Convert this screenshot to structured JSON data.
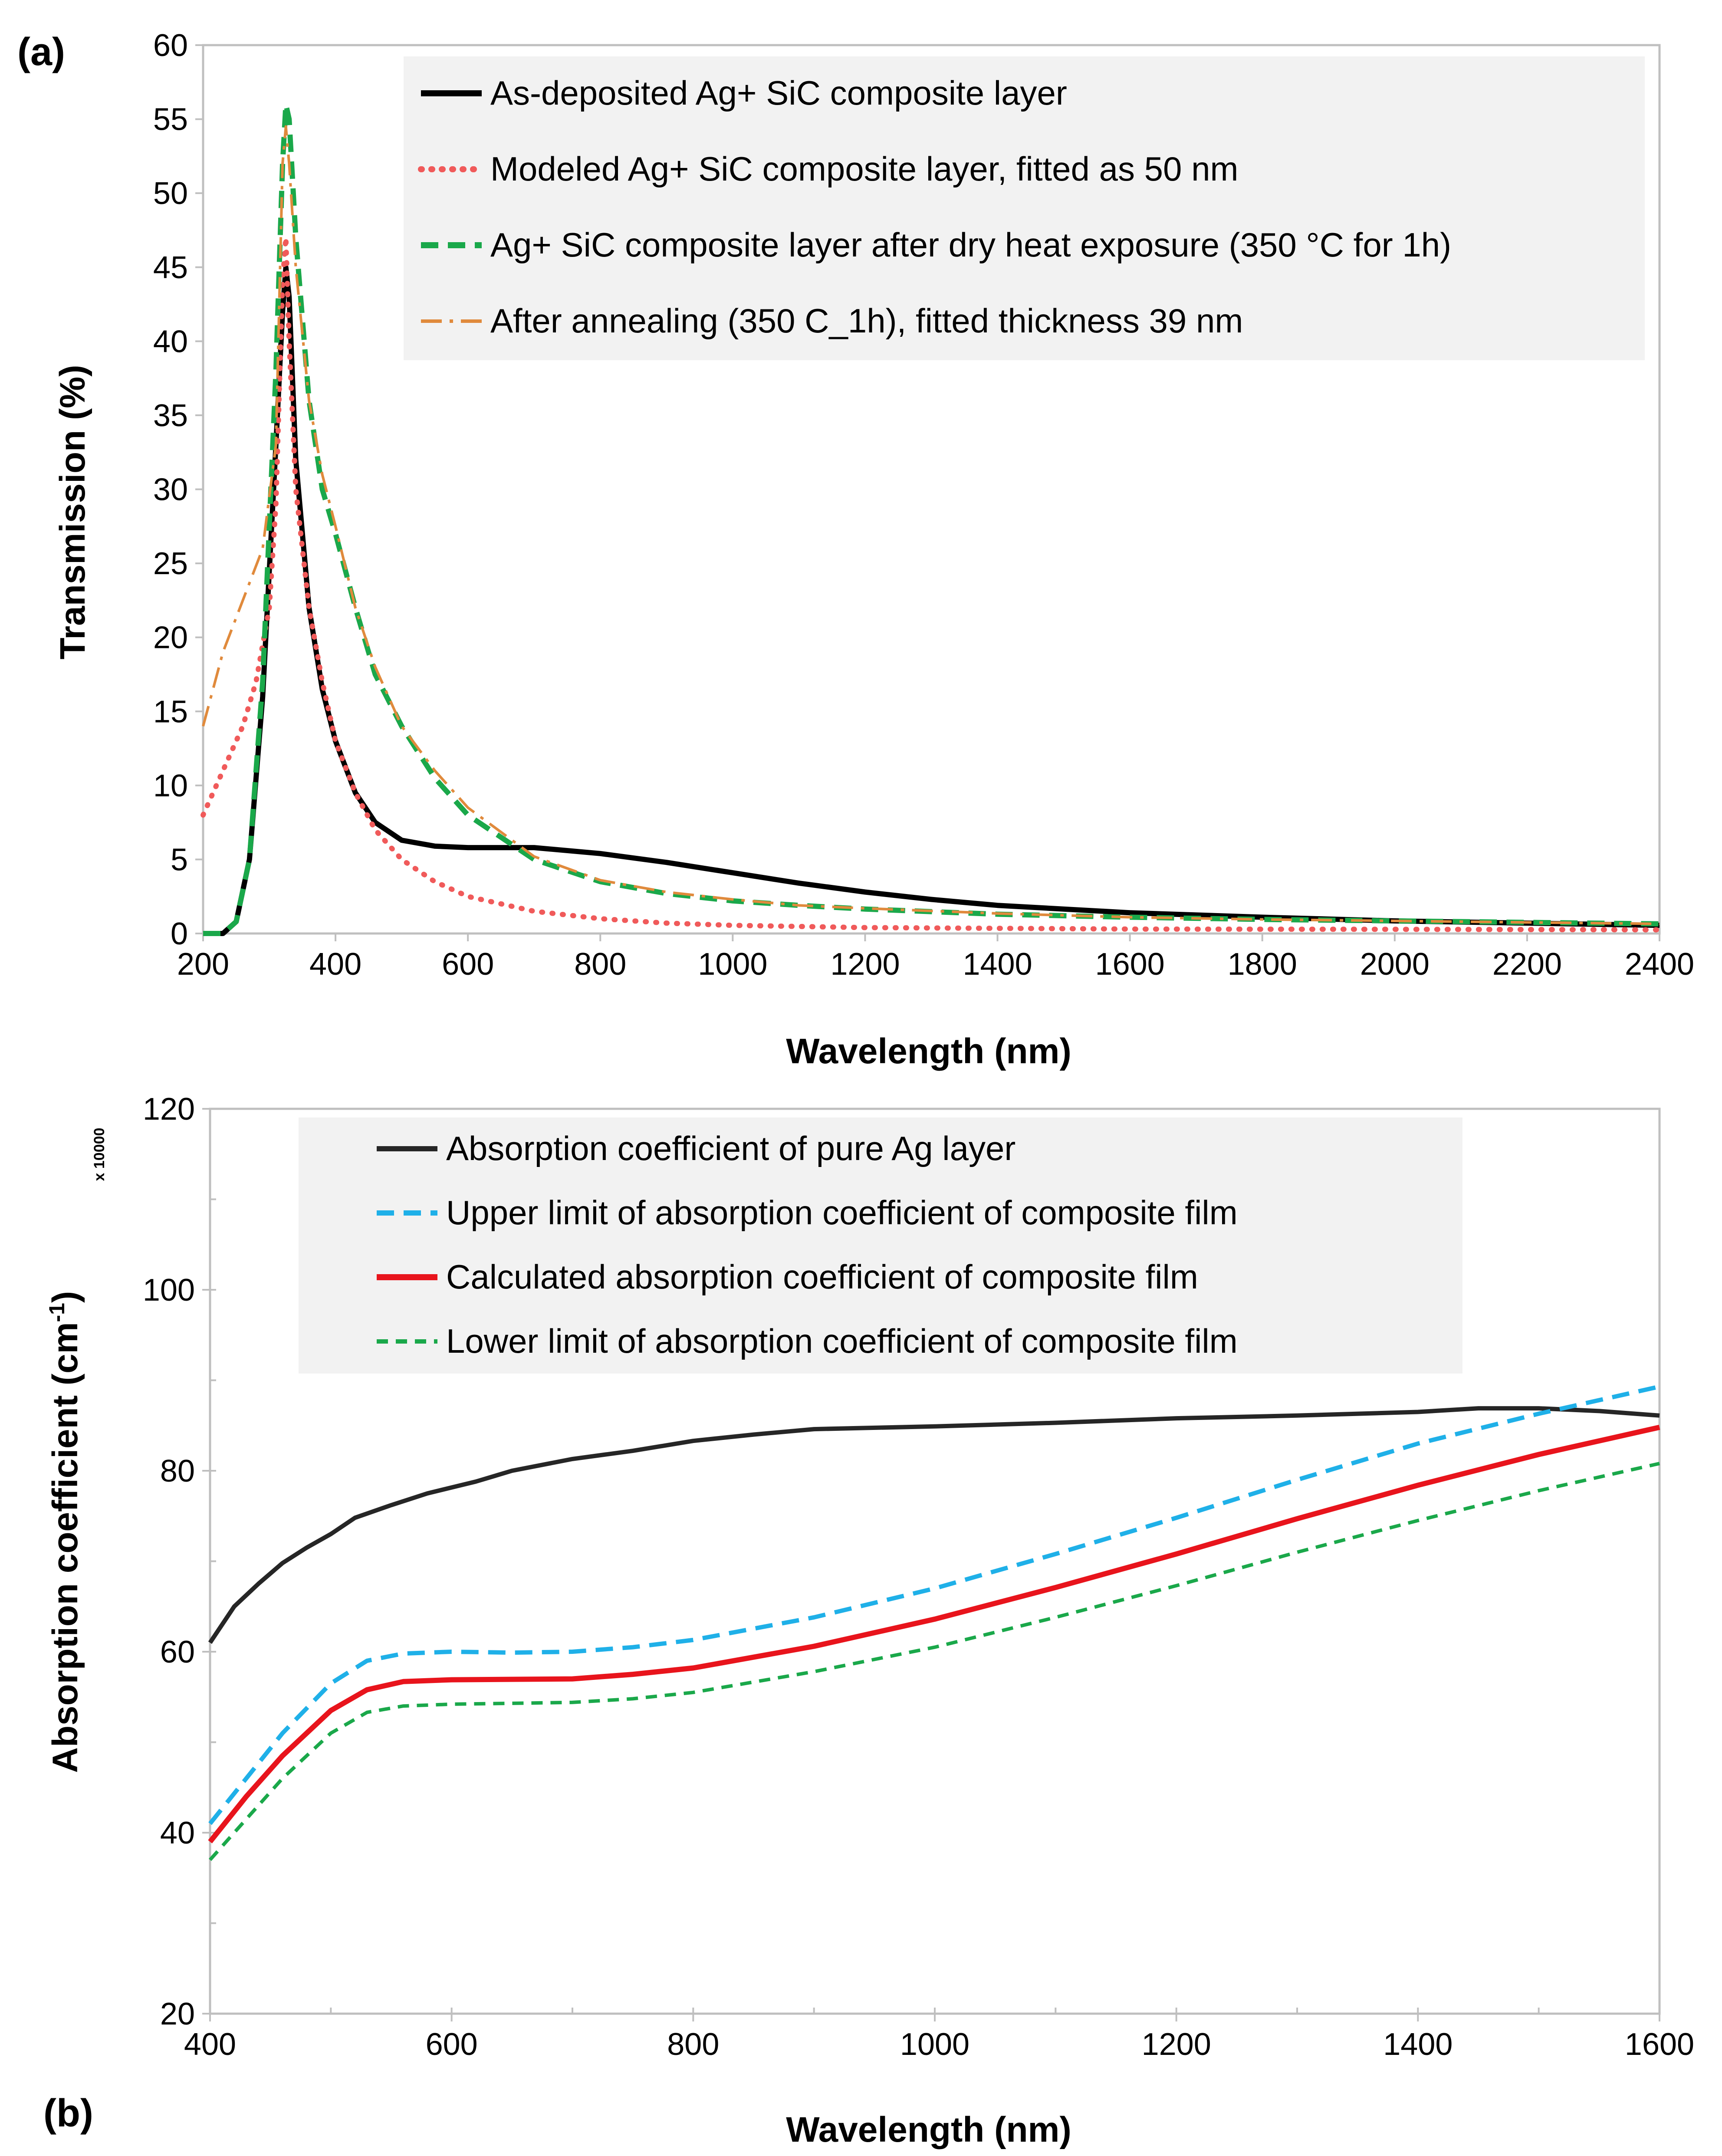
{
  "panel_a": {
    "label": "(a)",
    "axes_color": "#bfbfbf",
    "legend_bg": "#f2f2f2",
    "chart_data": {
      "type": "line",
      "xlabel": "Wavelength (nm)",
      "ylabel": "Transmission (%)",
      "xlim": [
        200,
        2400
      ],
      "ylim": [
        0,
        60
      ],
      "xticks": [
        200,
        400,
        600,
        800,
        1000,
        1200,
        1400,
        1600,
        1800,
        2000,
        2200,
        2400
      ],
      "yticks": [
        0,
        5,
        10,
        15,
        20,
        25,
        30,
        35,
        40,
        45,
        50,
        55,
        60
      ],
      "series": [
        {
          "name": "As-deposited Ag+ SiC composite layer",
          "color": "#000000",
          "style": "solid",
          "points": [
            [
              200,
              0
            ],
            [
              230,
              0
            ],
            [
              250,
              0.8
            ],
            [
              270,
              5
            ],
            [
              290,
              16
            ],
            [
              310,
              33
            ],
            [
              320,
              42
            ],
            [
              325,
              45
            ],
            [
              330,
              43
            ],
            [
              340,
              32
            ],
            [
              360,
              22
            ],
            [
              380,
              16.5
            ],
            [
              400,
              13
            ],
            [
              430,
              9.5
            ],
            [
              460,
              7.5
            ],
            [
              500,
              6.3
            ],
            [
              550,
              5.9
            ],
            [
              600,
              5.8
            ],
            [
              700,
              5.8
            ],
            [
              800,
              5.4
            ],
            [
              900,
              4.8
            ],
            [
              1000,
              4.1
            ],
            [
              1100,
              3.4
            ],
            [
              1200,
              2.8
            ],
            [
              1300,
              2.3
            ],
            [
              1400,
              1.9
            ],
            [
              1600,
              1.4
            ],
            [
              1800,
              1.1
            ],
            [
              2000,
              0.85
            ],
            [
              2200,
              0.7
            ],
            [
              2400,
              0.55
            ]
          ]
        },
        {
          "name": "Modeled  Ag+ SiC composite layer, fitted as 50 nm",
          "color": "#f05a5a",
          "style": "dotted",
          "points": [
            [
              200,
              8
            ],
            [
              230,
              11
            ],
            [
              260,
              14
            ],
            [
              280,
              17
            ],
            [
              300,
              22
            ],
            [
              310,
              29
            ],
            [
              320,
              44
            ],
            [
              325,
              47
            ],
            [
              330,
              40
            ],
            [
              340,
              30
            ],
            [
              360,
              22
            ],
            [
              380,
              17
            ],
            [
              400,
              13
            ],
            [
              430,
              9.5
            ],
            [
              460,
              7
            ],
            [
              500,
              5
            ],
            [
              550,
              3.5
            ],
            [
              600,
              2.5
            ],
            [
              700,
              1.5
            ],
            [
              800,
              1.0
            ],
            [
              900,
              0.7
            ],
            [
              1000,
              0.55
            ],
            [
              1200,
              0.4
            ],
            [
              1400,
              0.35
            ],
            [
              1600,
              0.3
            ],
            [
              2000,
              0.28
            ],
            [
              2400,
              0.25
            ]
          ]
        },
        {
          "name": "Ag+ SiC composite layer after dry heat exposure (350 °C for 1h)",
          "color": "#1aa84a",
          "style": "dashed",
          "points": [
            [
              200,
              0
            ],
            [
              230,
              0
            ],
            [
              250,
              0.8
            ],
            [
              270,
              5
            ],
            [
              290,
              17
            ],
            [
              310,
              38
            ],
            [
              320,
              52
            ],
            [
              325,
              56
            ],
            [
              330,
              55
            ],
            [
              340,
              47
            ],
            [
              360,
              36
            ],
            [
              380,
              30
            ],
            [
              400,
              27
            ],
            [
              430,
              22
            ],
            [
              460,
              17.5
            ],
            [
              500,
              14
            ],
            [
              550,
              10.5
            ],
            [
              600,
              8
            ],
            [
              700,
              5
            ],
            [
              800,
              3.5
            ],
            [
              900,
              2.7
            ],
            [
              1000,
              2.2
            ],
            [
              1100,
              1.9
            ],
            [
              1200,
              1.65
            ],
            [
              1400,
              1.3
            ],
            [
              1600,
              1.1
            ],
            [
              1800,
              0.95
            ],
            [
              2000,
              0.85
            ],
            [
              2200,
              0.75
            ],
            [
              2400,
              0.65
            ]
          ]
        },
        {
          "name": "After annealing (350 C_1h), fitted thickness 39 nm",
          "color": "#e08a3c",
          "style": "dashdot",
          "points": [
            [
              200,
              14
            ],
            [
              230,
              19
            ],
            [
              260,
              22.5
            ],
            [
              290,
              26
            ],
            [
              310,
              33
            ],
            [
              320,
              52
            ],
            [
              325,
              54.5
            ],
            [
              330,
              52
            ],
            [
              340,
              45
            ],
            [
              360,
              36
            ],
            [
              380,
              31
            ],
            [
              400,
              27.5
            ],
            [
              430,
              22
            ],
            [
              460,
              18
            ],
            [
              500,
              14
            ],
            [
              550,
              11
            ],
            [
              600,
              8.5
            ],
            [
              700,
              5.2
            ],
            [
              800,
              3.6
            ],
            [
              900,
              2.8
            ],
            [
              1000,
              2.3
            ],
            [
              1100,
              1.9
            ],
            [
              1200,
              1.7
            ],
            [
              1400,
              1.35
            ],
            [
              1600,
              1.1
            ],
            [
              1800,
              0.95
            ],
            [
              2000,
              0.85
            ],
            [
              2200,
              0.75
            ],
            [
              2400,
              0.65
            ]
          ]
        }
      ]
    }
  },
  "panel_b": {
    "label": "(b)",
    "multiplier": "x 10000",
    "axes_color": "#bfbfbf",
    "legend_bg": "#f2f2f2",
    "chart_data": {
      "type": "line",
      "xlabel": "Wavelength (nm)",
      "ylabel_main": "Absorption coefficient (cm",
      "ylabel_sup": "-1",
      "ylabel_close": ")",
      "xlim": [
        400,
        1600
      ],
      "ylim": [
        20,
        120
      ],
      "xticks": [
        400,
        600,
        800,
        1000,
        1200,
        1400,
        1600
      ],
      "yticks": [
        20,
        40,
        60,
        80,
        100,
        120
      ],
      "series": [
        {
          "name": "Absorption coefficient of pure Ag layer",
          "color": "#262626",
          "style": "solid",
          "points": [
            [
              400,
              61
            ],
            [
              420,
              65
            ],
            [
              440,
              67.5
            ],
            [
              460,
              69.8
            ],
            [
              480,
              71.5
            ],
            [
              500,
              73
            ],
            [
              520,
              74.8
            ],
            [
              550,
              76.2
            ],
            [
              580,
              77.5
            ],
            [
              620,
              78.8
            ],
            [
              650,
              80
            ],
            [
              700,
              81.3
            ],
            [
              750,
              82.2
            ],
            [
              800,
              83.3
            ],
            [
              850,
              84
            ],
            [
              900,
              84.6
            ],
            [
              1000,
              84.9
            ],
            [
              1100,
              85.3
            ],
            [
              1200,
              85.8
            ],
            [
              1300,
              86.1
            ],
            [
              1400,
              86.5
            ],
            [
              1450,
              86.9
            ],
            [
              1500,
              86.9
            ],
            [
              1550,
              86.6
            ],
            [
              1600,
              86.1
            ]
          ]
        },
        {
          "name": "Upper limit of absorption coefficient of composite film",
          "color": "#1fb0e8",
          "style": "dashed",
          "points": [
            [
              400,
              41
            ],
            [
              430,
              46
            ],
            [
              460,
              51
            ],
            [
              500,
              56.5
            ],
            [
              530,
              59
            ],
            [
              560,
              59.8
            ],
            [
              600,
              60
            ],
            [
              650,
              59.9
            ],
            [
              700,
              60
            ],
            [
              750,
              60.5
            ],
            [
              800,
              61.3
            ],
            [
              900,
              63.8
            ],
            [
              1000,
              67
            ],
            [
              1100,
              70.8
            ],
            [
              1200,
              74.8
            ],
            [
              1300,
              79
            ],
            [
              1400,
              83
            ],
            [
              1500,
              86.3
            ],
            [
              1600,
              89.3
            ]
          ]
        },
        {
          "name": "Calculated absorption coefficient of composite film",
          "color": "#e8141c",
          "style": "solid",
          "points": [
            [
              400,
              39
            ],
            [
              430,
              44
            ],
            [
              460,
              48.5
            ],
            [
              500,
              53.5
            ],
            [
              530,
              55.8
            ],
            [
              560,
              56.7
            ],
            [
              600,
              56.9
            ],
            [
              700,
              57
            ],
            [
              750,
              57.5
            ],
            [
              800,
              58.2
            ],
            [
              900,
              60.6
            ],
            [
              1000,
              63.6
            ],
            [
              1100,
              67.1
            ],
            [
              1200,
              70.8
            ],
            [
              1300,
              74.7
            ],
            [
              1400,
              78.4
            ],
            [
              1500,
              81.8
            ],
            [
              1600,
              84.8
            ]
          ]
        },
        {
          "name": "Lower limit of absorption coefficient of composite film",
          "color": "#1aa84a",
          "style": "dashed-fine",
          "points": [
            [
              400,
              37
            ],
            [
              430,
              41.5
            ],
            [
              460,
              46
            ],
            [
              500,
              51
            ],
            [
              530,
              53.3
            ],
            [
              560,
              54
            ],
            [
              600,
              54.2
            ],
            [
              700,
              54.4
            ],
            [
              750,
              54.8
            ],
            [
              800,
              55.5
            ],
            [
              900,
              57.8
            ],
            [
              1000,
              60.5
            ],
            [
              1100,
              63.8
            ],
            [
              1200,
              67.3
            ],
            [
              1300,
              71
            ],
            [
              1400,
              74.5
            ],
            [
              1500,
              77.8
            ],
            [
              1600,
              80.8
            ]
          ]
        }
      ]
    }
  }
}
